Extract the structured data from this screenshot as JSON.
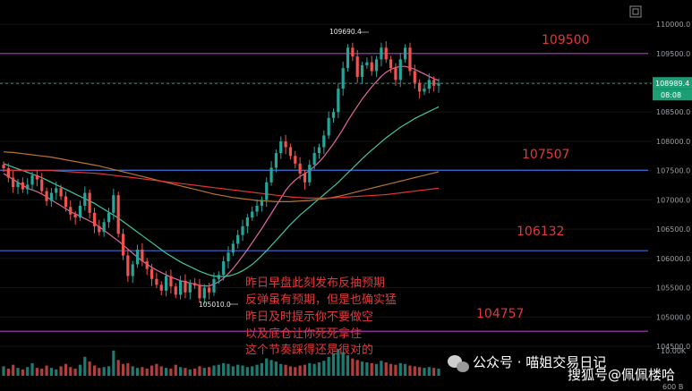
{
  "chart_data": {
    "type": "candlestick",
    "ylim": [
      104500,
      110200
    ],
    "y_ticks": [
      110000,
      109500,
      109000,
      108500,
      108000,
      107500,
      107000,
      106500,
      106000,
      105500,
      105000,
      104500
    ],
    "y_tick_labels": [
      "110000.0",
      "109500.0",
      "108989.4",
      "108500.0",
      "108000.0",
      "107500.0",
      "107000.0",
      "106500.0",
      "106000.0",
      "105500.0",
      "105000.0",
      "104500.0"
    ],
    "current_price": 108989.4,
    "current_price_label": "108989.4",
    "countdown_label": "08:08",
    "high_annotation": "109690.4",
    "low_annotation": "105010.0",
    "horizontal_levels": [
      {
        "value": 109500,
        "label": "109500"
      },
      {
        "value": 107507,
        "label": "107507"
      },
      {
        "value": 106132,
        "label": "106132"
      },
      {
        "value": 104757,
        "label": "104757"
      }
    ],
    "volume_labels": [
      "10.00K",
      "600 B"
    ],
    "closes": [
      107540,
      107380,
      107220,
      107300,
      107180,
      107260,
      107420,
      107350,
      107150,
      106980,
      107120,
      107200,
      107060,
      106880,
      106750,
      106700,
      106900,
      107120,
      106780,
      106550,
      106450,
      106620,
      106780,
      107080,
      106420,
      106050,
      105700,
      105900,
      106150,
      105950,
      105820,
      105650,
      105550,
      105450,
      105700,
      105520,
      105380,
      105620,
      105420,
      105580,
      105540,
      105320,
      105500,
      105420,
      105650,
      105720,
      105950,
      106100,
      106250,
      106400,
      106550,
      106700,
      106800,
      106900,
      107000,
      107300,
      107550,
      107800,
      108000,
      107900,
      107750,
      107620,
      107450,
      107300,
      107600,
      107800,
      107900,
      108100,
      108400,
      108500,
      108900,
      109250,
      109600,
      109450,
      109100,
      109300,
      109350,
      109200,
      109400,
      109600,
      109400,
      109250,
      109050,
      109400,
      109600,
      109200,
      109000,
      108850,
      108900,
      109050,
      108950,
      108989
    ],
    "ma_series": [
      {
        "color": "#e06aa0",
        "values": [
          107450,
          107400,
          107350,
          107300,
          107250,
          107200,
          107170,
          107140,
          107100,
          107050,
          107000,
          106950,
          106900,
          106850,
          106800,
          106760,
          106720,
          106680,
          106640,
          106600,
          106540,
          106480,
          106420,
          106360,
          106300,
          106230,
          106160,
          106090,
          106020,
          105960,
          105900,
          105850,
          105800,
          105760,
          105720,
          105680,
          105650,
          105620,
          105600,
          105580,
          105560,
          105540,
          105530,
          105530,
          105560,
          105600,
          105660,
          105740,
          105830,
          105930,
          106040,
          106150,
          106270,
          106390,
          106510,
          106640,
          106770,
          106900,
          107030,
          107160,
          107260,
          107340,
          107400,
          107450,
          107500,
          107570,
          107650,
          107740,
          107850,
          107960,
          108080,
          108210,
          108350,
          108480,
          108600,
          108720,
          108830,
          108930,
          109020,
          109110,
          109180,
          109230,
          109260,
          109280,
          109280,
          109260,
          109230,
          109190,
          109150,
          109110,
          109070,
          109040
        ]
      },
      {
        "color": "#3fc6a3",
        "values": [
          107620,
          107590,
          107560,
          107530,
          107500,
          107470,
          107440,
          107410,
          107380,
          107340,
          107300,
          107260,
          107220,
          107180,
          107140,
          107100,
          107060,
          107020,
          106980,
          106940,
          106890,
          106840,
          106790,
          106740,
          106690,
          106630,
          106570,
          106510,
          106450,
          106390,
          106330,
          106270,
          106210,
          106150,
          106090,
          106040,
          105990,
          105940,
          105900,
          105860,
          105820,
          105780,
          105750,
          105720,
          105700,
          105690,
          105690,
          105700,
          105720,
          105750,
          105790,
          105840,
          105900,
          105970,
          106050,
          106130,
          106220,
          106310,
          106400,
          106490,
          106580,
          106660,
          106740,
          106810,
          106880,
          106950,
          107020,
          107090,
          107160,
          107230,
          107300,
          107380,
          107460,
          107540,
          107620,
          107700,
          107780,
          107850,
          107920,
          107990,
          108060,
          108120,
          108180,
          108240,
          108290,
          108340,
          108390,
          108430,
          108470,
          108510,
          108550,
          108590
        ]
      },
      {
        "color": "#b8742e",
        "values": [
          107820,
          107815,
          107810,
          107800,
          107790,
          107780,
          107770,
          107760,
          107750,
          107740,
          107730,
          107715,
          107700,
          107685,
          107670,
          107655,
          107640,
          107625,
          107610,
          107595,
          107580,
          107560,
          107540,
          107520,
          107500,
          107480,
          107460,
          107440,
          107420,
          107400,
          107380,
          107360,
          107340,
          107320,
          107300,
          107280,
          107260,
          107240,
          107220,
          107200,
          107180,
          107160,
          107140,
          107120,
          107100,
          107085,
          107070,
          107055,
          107040,
          107030,
          107020,
          107010,
          107000,
          106990,
          106985,
          106980,
          106975,
          106970,
          106970,
          106970,
          106970,
          106975,
          106980,
          106985,
          106990,
          107000,
          107010,
          107020,
          107030,
          107045,
          107060,
          107080,
          107100,
          107120,
          107140,
          107160,
          107180,
          107200,
          107220,
          107240,
          107260,
          107280,
          107300,
          107320,
          107340,
          107360,
          107380,
          107400,
          107420,
          107440,
          107460,
          107480
        ]
      },
      {
        "color": "#e03434",
        "values": [
          107500,
          107500,
          107500,
          107500,
          107500,
          107500,
          107500,
          107500,
          107500,
          107500,
          107500,
          107495,
          107490,
          107485,
          107480,
          107475,
          107470,
          107465,
          107460,
          107455,
          107450,
          107440,
          107430,
          107420,
          107410,
          107400,
          107390,
          107380,
          107370,
          107360,
          107350,
          107340,
          107330,
          107320,
          107310,
          107300,
          107290,
          107280,
          107270,
          107260,
          107250,
          107240,
          107230,
          107220,
          107210,
          107200,
          107190,
          107180,
          107170,
          107160,
          107150,
          107140,
          107130,
          107120,
          107110,
          107100,
          107090,
          107080,
          107070,
          107060,
          107050,
          107045,
          107040,
          107035,
          107030,
          107030,
          107030,
          107030,
          107030,
          107035,
          107040,
          107045,
          107050,
          107055,
          107060,
          107065,
          107070,
          107075,
          107080,
          107085,
          107090,
          107100,
          107110,
          107120,
          107130,
          107140,
          107150,
          107160,
          107170,
          107180,
          107190,
          107200
        ]
      }
    ],
    "volumes": [
      1.2,
      0.9,
      1.4,
      1.0,
      0.8,
      1.1,
      1.6,
      1.0,
      0.9,
      1.3,
      1.0,
      0.8,
      1.2,
      1.5,
      1.1,
      0.9,
      1.4,
      2.4,
      1.8,
      1.3,
      1.0,
      1.1,
      1.2,
      3.2,
      2.0,
      1.5,
      1.6,
      1.2,
      1.0,
      1.1,
      0.9,
      1.3,
      1.5,
      1.2,
      1.0,
      0.9,
      1.4,
      1.1,
      1.0,
      0.8,
      0.9,
      1.2,
      1.0,
      1.1,
      1.3,
      1.4,
      1.6,
      1.5,
      1.2,
      1.4,
      1.3,
      1.1,
      1.2,
      1.4,
      1.6,
      2.2,
      2.0,
      1.8,
      1.5,
      1.4,
      1.2,
      1.1,
      1.3,
      1.4,
      1.6,
      1.5,
      1.7,
      1.9,
      2.4,
      2.8,
      3.4,
      3.0,
      2.6,
      2.2,
      2.0,
      1.8,
      1.7,
      1.6,
      1.5,
      1.9,
      1.7,
      1.5,
      1.4,
      1.6,
      1.5,
      1.3,
      1.2,
      1.1,
      1.0,
      1.1,
      1.0,
      0.9
    ]
  },
  "annotation_lines": [
    "昨日早盘此刻发布反抽预期",
    "反弹虽有预期，但是也确实猛",
    "昨日及时提示你不要做空",
    "以及底仓让你死死拿住",
    "这个节奏踩得还是很对的"
  ],
  "watermark": {
    "left": "公众号 · 喵姐交易日记",
    "right": "搜狐号@佩佩楼哈"
  },
  "colors": {
    "up": "#26a69a",
    "down": "#ef5350",
    "level_line": "#b03ac6",
    "blue_line": "#3f6fd8",
    "level_text": "#e0393b",
    "price_tag": "#1b9e74"
  }
}
